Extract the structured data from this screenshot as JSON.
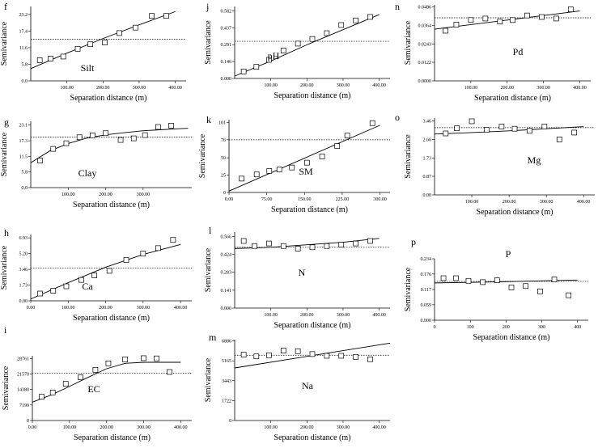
{
  "chart_data": [
    {
      "type": "scatter",
      "panel": "f",
      "label": "Silt",
      "x_label": "Separation distance (m)",
      "y_label": "Semivariance",
      "xlim": [
        0,
        430
      ],
      "ylim": [
        0,
        26
      ],
      "xticks": [
        {
          "value": 100,
          "label": "100.00"
        },
        {
          "value": 200,
          "label": "200.00"
        },
        {
          "value": 300,
          "label": "300.00"
        },
        {
          "value": 400,
          "label": "400.00"
        }
      ],
      "yticks": [
        {
          "value": 0,
          "label": "0.0"
        },
        5.8,
        11.6,
        17.4,
        23.2
      ],
      "points": {
        "x": [
          25,
          55,
          90,
          130,
          165,
          205,
          245,
          290,
          335,
          375
        ],
        "y": [
          7.2,
          7.8,
          8.5,
          11.2,
          12.8,
          13.4,
          16.7,
          18.6,
          22.7,
          22.7
        ]
      },
      "model": {
        "x": [
          0,
          100,
          200,
          300,
          400
        ],
        "y": [
          4.3,
          9.7,
          14.8,
          19.6,
          24.2
        ]
      },
      "sill": 14.6
    },
    {
      "type": "scatter",
      "panel": "g",
      "label": "Clay",
      "x_label": "Separation distance (m)",
      "y_label": "Semivariance",
      "xlim": [
        0,
        430
      ],
      "ylim": [
        0,
        24.5
      ],
      "xticks": [
        {
          "value": 100,
          "label": "100.00"
        },
        {
          "value": 200,
          "label": "200.00"
        },
        {
          "value": 300,
          "label": "300.00"
        }
      ],
      "yticks": [
        {
          "value": 0,
          "label": "0.0"
        },
        5.8,
        11.5,
        17.3,
        23.1
      ],
      "points": {
        "x": [
          25,
          60,
          95,
          130,
          165,
          200,
          240,
          275,
          305,
          340,
          375
        ],
        "y": [
          10,
          14.3,
          16.4,
          18.6,
          19.3,
          20.1,
          17.6,
          18.2,
          19.4,
          22.4,
          22.9
        ]
      },
      "model": {
        "x": [
          0,
          50,
          100,
          150,
          200,
          250,
          300,
          350,
          400,
          420
        ],
        "y": [
          9.2,
          13.5,
          16.3,
          18.3,
          19.5,
          20.3,
          21,
          21.4,
          21.8,
          21.9
        ]
      },
      "sill": 18.7
    },
    {
      "type": "scatter",
      "panel": "h",
      "label": "Ca",
      "x_label": "Separation distance (m)",
      "y_label": "Semivariance",
      "xlim": [
        0,
        430
      ],
      "ylim": [
        0,
        7.3
      ],
      "xticks": [
        {
          "value": 0,
          "label": "0.00"
        },
        {
          "value": 100,
          "label": "100.00"
        },
        {
          "value": 200,
          "label": "200.00"
        },
        {
          "value": 300,
          "label": "300.00"
        },
        {
          "value": 400,
          "label": "400.00"
        }
      ],
      "yticks": [
        {
          "value": 0,
          "label": "0.00"
        },
        1.73,
        3.46,
        {
          "value": 5.2,
          "label": "5.20"
        },
        6.93
      ],
      "points": {
        "x": [
          25,
          60,
          95,
          135,
          170,
          210,
          255,
          300,
          340,
          380
        ],
        "y": [
          0.8,
          1.1,
          1.6,
          2.3,
          2.8,
          3.3,
          4.5,
          5.2,
          5.8,
          6.7
        ]
      },
      "model": {
        "x": [
          0,
          100,
          200,
          300,
          400
        ],
        "y": [
          0.2,
          2,
          3.7,
          5.1,
          6.2
        ]
      },
      "sill": 3.6
    },
    {
      "type": "scatter",
      "panel": "i",
      "label": "EC",
      "x_label": "Separation distance (m)",
      "y_label": "Semivariance",
      "xlim": [
        0,
        430
      ],
      "ylim": [
        0,
        30000
      ],
      "xticks": [
        {
          "value": 0,
          "label": "0.00"
        },
        {
          "value": 100,
          "label": "100.00"
        },
        {
          "value": 200,
          "label": "200.00"
        },
        {
          "value": 300,
          "label": "300.00"
        },
        {
          "value": 400,
          "label": "400.00"
        }
      ],
      "yticks": [
        0,
        7190,
        14380,
        21570,
        28761
      ],
      "points": {
        "x": [
          25,
          55,
          90,
          130,
          170,
          205,
          250,
          300,
          335,
          370
        ],
        "y": [
          11000,
          13000,
          17000,
          20000,
          23500,
          26500,
          28300,
          28900,
          28800,
          22500
        ]
      },
      "model": {
        "x": [
          0,
          50,
          100,
          150,
          200,
          250,
          300,
          350,
          400
        ],
        "y": [
          8500,
          11800,
          15800,
          20000,
          24000,
          26500,
          27000,
          27000,
          27000
        ]
      },
      "sill": 22000
    },
    {
      "type": "scatter",
      "panel": "j",
      "label": "pH",
      "x_label": "Separation distance (m)",
      "y_label": "Semivariance",
      "xlim": [
        0,
        430
      ],
      "ylim": [
        0,
        0.62
      ],
      "xticks": [
        {
          "value": 100,
          "label": "100.00"
        },
        {
          "value": 200,
          "label": "200.00"
        },
        {
          "value": 300,
          "label": "300.00"
        },
        {
          "value": 400,
          "label": "400.00"
        }
      ],
      "yticks": [
        {
          "value": 0,
          "label": "0.000"
        },
        0.146,
        0.291,
        0.437,
        0.582
      ],
      "points": {
        "x": [
          25,
          60,
          95,
          135,
          175,
          215,
          255,
          295,
          335,
          375
        ],
        "y": [
          0.06,
          0.1,
          0.16,
          0.24,
          0.3,
          0.34,
          0.39,
          0.46,
          0.5,
          0.53
        ]
      },
      "model": {
        "x": [
          0,
          100,
          200,
          300,
          400
        ],
        "y": [
          0.02,
          0.15,
          0.29,
          0.42,
          0.55
        ]
      },
      "sill": 0.32
    },
    {
      "type": "scatter",
      "panel": "k",
      "label": "SM",
      "x_label": "Separation distance (m)",
      "y_label": "Semivariance",
      "xlim": [
        0,
        320
      ],
      "ylim": [
        0,
        105
      ],
      "xticks": [
        {
          "value": 0,
          "label": "0.00"
        },
        {
          "value": 75,
          "label": "75.00"
        },
        {
          "value": 150,
          "label": "150.00"
        },
        {
          "value": 225,
          "label": "225.00"
        },
        {
          "value": 300,
          "label": "300.00"
        }
      ],
      "yticks": [
        0,
        25,
        50,
        76,
        101
      ],
      "points": {
        "x": [
          25,
          55,
          80,
          100,
          125,
          155,
          185,
          215,
          235,
          285
        ],
        "y": [
          20,
          26,
          31,
          33,
          36,
          43,
          52,
          67,
          82,
          100
        ]
      },
      "model": {
        "x": [
          0,
          300
        ],
        "y": [
          2,
          97
        ]
      },
      "sill": 76
    },
    {
      "type": "scatter",
      "panel": "l",
      "label": "N",
      "x_label": "Separation distance (m)",
      "y_label": "Semivariance",
      "xlim": [
        0,
        430
      ],
      "ylim": [
        0,
        0.6
      ],
      "xticks": [
        {
          "value": 100,
          "label": "100.00"
        },
        {
          "value": 200,
          "label": "200.00"
        },
        {
          "value": 300,
          "label": "300.00"
        },
        {
          "value": 400,
          "label": "400.00"
        }
      ],
      "yticks": [
        {
          "value": 0,
          "label": "0.000"
        },
        0.141,
        0.283,
        0.424,
        0.566
      ],
      "points": {
        "x": [
          25,
          55,
          95,
          135,
          175,
          215,
          255,
          295,
          335,
          375
        ],
        "y": [
          0.53,
          0.49,
          0.51,
          0.49,
          0.47,
          0.48,
          0.49,
          0.5,
          0.51,
          0.53
        ]
      },
      "model": {
        "x": [
          0,
          100,
          200,
          300,
          400
        ],
        "y": [
          0.47,
          0.48,
          0.5,
          0.52,
          0.55
        ]
      },
      "sill": 0.48
    },
    {
      "type": "scatter",
      "panel": "m",
      "label": "Na",
      "x_label": "Separation distance (m)",
      "y_label": "Semivariance",
      "xlim": [
        0,
        430
      ],
      "ylim": [
        0,
        7000
      ],
      "xticks": [
        {
          "value": 100,
          "label": "100.00"
        },
        {
          "value": 200,
          "label": "200.00"
        },
        {
          "value": 300,
          "label": "300.00"
        },
        {
          "value": 400,
          "label": "400.00"
        }
      ],
      "yticks": [
        0,
        1722,
        3443,
        5165,
        6886
      ],
      "points": {
        "x": [
          25,
          60,
          95,
          135,
          175,
          215,
          255,
          295,
          335,
          375
        ],
        "y": [
          5700,
          5550,
          5650,
          6050,
          6000,
          5750,
          5600,
          5600,
          5500,
          5300
        ]
      },
      "model": {
        "x": [
          0,
          430
        ],
        "y": [
          4550,
          6700
        ]
      },
      "sill": 5650
    },
    {
      "type": "scatter",
      "panel": "n",
      "label": "Pd",
      "x_label": "Separation distance (m)",
      "y_label": "Semivariance",
      "xlim": [
        0,
        430
      ],
      "ylim": [
        0,
        0.05
      ],
      "xticks": [
        {
          "value": 100,
          "label": "100.00"
        },
        {
          "value": 200,
          "label": "200.00"
        },
        {
          "value": 300,
          "label": "300.00"
        },
        {
          "value": 400,
          "label": "400.00"
        }
      ],
      "yticks": [
        {
          "value": 0,
          "label": "0.0000"
        },
        0.0122,
        0.0243,
        0.0364,
        0.0486
      ],
      "points": {
        "x": [
          30,
          60,
          100,
          140,
          180,
          215,
          255,
          295,
          335,
          375
        ],
        "y": [
          0.033,
          0.037,
          0.04,
          0.041,
          0.039,
          0.04,
          0.043,
          0.042,
          0.041,
          0.047
        ]
      },
      "model": {
        "x": [
          0,
          100,
          200,
          300,
          400
        ],
        "y": [
          0.034,
          0.037,
          0.04,
          0.043,
          0.046
        ]
      },
      "sill": 0.0415
    },
    {
      "type": "scatter",
      "panel": "o",
      "label": "Mg",
      "x_label": "Separation distance (m)",
      "y_label": "Semivariance",
      "xlim": [
        0,
        430
      ],
      "ylim": [
        0,
        3.6
      ],
      "xticks": [
        {
          "value": 100,
          "label": "100.00"
        },
        {
          "value": 200,
          "label": "200.00"
        },
        {
          "value": 300,
          "label": "300.00"
        },
        {
          "value": 400,
          "label": "400.00"
        }
      ],
      "yticks": [
        {
          "value": 0,
          "label": "0.00"
        },
        0.87,
        1.73,
        {
          "value": 2.6,
          "label": "2.60"
        },
        3.46
      ],
      "points": {
        "x": [
          30,
          60,
          100,
          140,
          180,
          215,
          255,
          295,
          335,
          375
        ],
        "y": [
          2.88,
          3.12,
          3.45,
          3.05,
          3.2,
          3.1,
          3,
          3.2,
          2.6,
          2.92
        ]
      },
      "model": {
        "x": [
          0,
          100,
          200,
          300,
          400
        ],
        "y": [
          2.85,
          2.92,
          3,
          3.1,
          3.2
        ]
      },
      "sill": 3.15
    },
    {
      "type": "scatter",
      "panel": "p",
      "label": "P",
      "x_label": "Separation distance (m)",
      "y_label": "Semivariance",
      "xlim": [
        0,
        430
      ],
      "ylim": [
        0,
        0.234
      ],
      "xticks": [
        0,
        100,
        200,
        300,
        400
      ],
      "yticks": [
        {
          "value": 0,
          "label": "0.000"
        },
        0.059,
        0.117,
        0.176,
        0.234
      ],
      "points": {
        "x": [
          25,
          60,
          95,
          135,
          175,
          215,
          255,
          295,
          335,
          375
        ],
        "y": [
          0.16,
          0.16,
          0.15,
          0.145,
          0.152,
          0.125,
          0.13,
          0.11,
          0.155,
          0.095
        ]
      },
      "model": {
        "x": [
          0,
          100,
          200,
          300,
          400
        ],
        "y": [
          0.142,
          0.144,
          0.147,
          0.15,
          0.153
        ]
      },
      "sill": 0.148
    }
  ]
}
